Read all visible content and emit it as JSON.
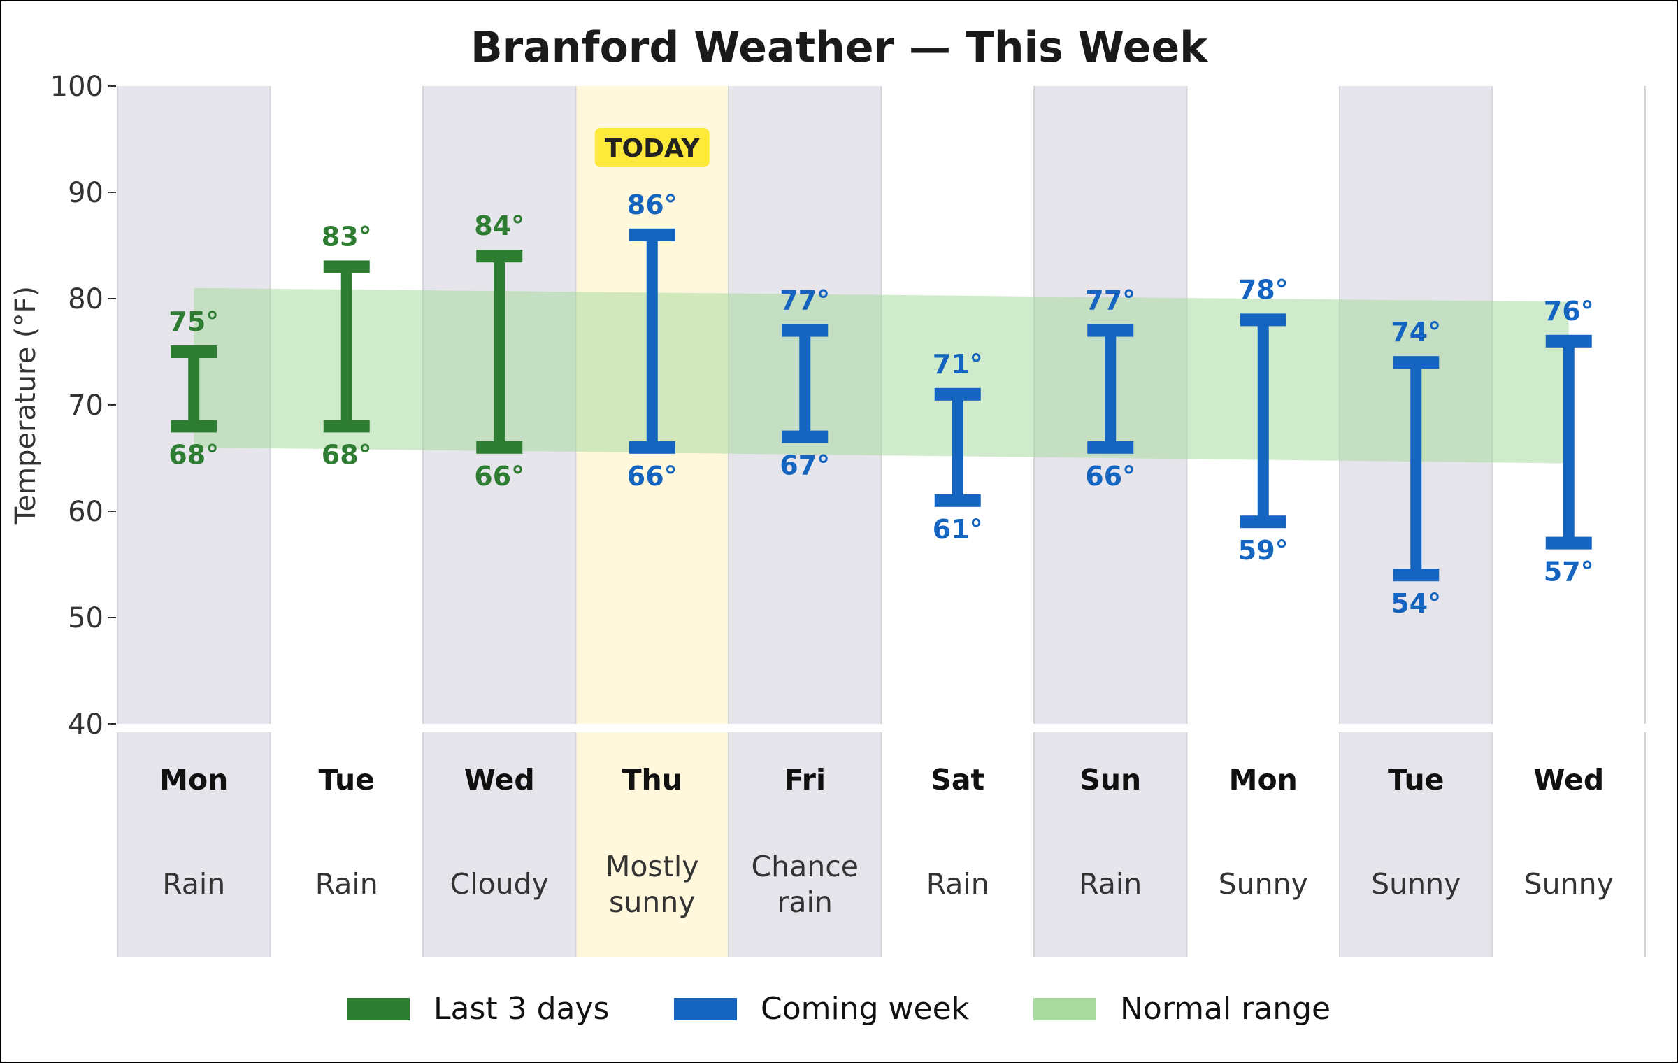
{
  "chart_data": {
    "type": "bar",
    "title": "Branford Weather — This Week",
    "ylabel": "Temperature (°F)",
    "ylim": [
      40,
      100
    ],
    "yticks": [
      40,
      50,
      60,
      70,
      80,
      90,
      100
    ],
    "today_label": "TODAY",
    "today_index": 3,
    "days": [
      {
        "day": "Mon",
        "condition": [
          "Rain"
        ],
        "low": 68,
        "high": 75,
        "group": "past",
        "low_label": "68°",
        "high_label": "75°"
      },
      {
        "day": "Tue",
        "condition": [
          "Rain"
        ],
        "low": 68,
        "high": 83,
        "group": "past",
        "low_label": "68°",
        "high_label": "83°"
      },
      {
        "day": "Wed",
        "condition": [
          "Cloudy"
        ],
        "low": 66,
        "high": 84,
        "group": "past",
        "low_label": "66°",
        "high_label": "84°"
      },
      {
        "day": "Thu",
        "condition": [
          "Mostly",
          "sunny"
        ],
        "low": 66,
        "high": 86,
        "group": "coming",
        "low_label": "66°",
        "high_label": "86°"
      },
      {
        "day": "Fri",
        "condition": [
          "Chance",
          "rain"
        ],
        "low": 67,
        "high": 77,
        "group": "coming",
        "low_label": "67°",
        "high_label": "77°"
      },
      {
        "day": "Sat",
        "condition": [
          "Rain"
        ],
        "low": 61,
        "high": 71,
        "group": "coming",
        "low_label": "61°",
        "high_label": "71°"
      },
      {
        "day": "Sun",
        "condition": [
          "Rain"
        ],
        "low": 66,
        "high": 77,
        "group": "coming",
        "low_label": "66°",
        "high_label": "77°"
      },
      {
        "day": "Mon",
        "condition": [
          "Sunny"
        ],
        "low": 59,
        "high": 78,
        "group": "coming",
        "low_label": "59°",
        "high_label": "78°"
      },
      {
        "day": "Tue",
        "condition": [
          "Sunny"
        ],
        "low": 54,
        "high": 74,
        "group": "coming",
        "low_label": "54°",
        "high_label": "74°"
      },
      {
        "day": "Wed",
        "condition": [
          "Sunny"
        ],
        "low": 57,
        "high": 76,
        "group": "coming",
        "low_label": "57°",
        "high_label": "76°"
      }
    ],
    "normal_range": {
      "start": [
        66,
        81
      ],
      "end": [
        64.5,
        79.7
      ]
    },
    "legend": [
      {
        "label": "Last 3 days",
        "color": "#2e7d32"
      },
      {
        "label": "Coming week",
        "color": "#1565c0"
      },
      {
        "label": "Normal range",
        "color": "#a9dba0"
      }
    ],
    "colors": {
      "past": "#2e7d32",
      "coming": "#1565c0",
      "normal": "#a9dba0",
      "stripe": "#e6e5ec",
      "today_bg": "#fff8dc",
      "today_badge": "#fde93a"
    }
  }
}
